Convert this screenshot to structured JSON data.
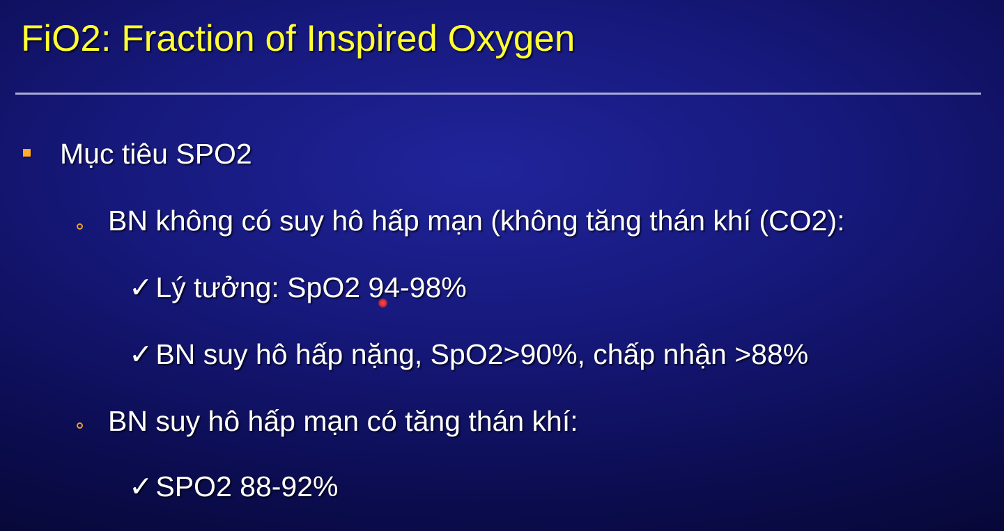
{
  "slide": {
    "title": "FiO2: Fraction of Inspired Oxygen",
    "check_mark": "✓",
    "items": [
      {
        "level": 1,
        "text": "Mục tiêu SPO2"
      },
      {
        "level": 2,
        "text": "BN không có suy hô hấp mạn (không tăng thán khí (CO2):"
      },
      {
        "level": 3,
        "text": "Lý tưởng: SpO2 94-98%"
      },
      {
        "level": 3,
        "text": "BN suy hô hấp nặng, SpO2>90%, chấp nhận >88%"
      },
      {
        "level": 2,
        "text": "BN suy hô hấp mạn có tăng thán khí:"
      },
      {
        "level": 3,
        "text": "SPO2 88-92%"
      }
    ]
  },
  "colors": {
    "title": "#ffff33",
    "bullet": "#ffae2a",
    "background": "#16187a",
    "rule": "#a8acd6",
    "pointer": "#e03030"
  },
  "icons": {
    "level1_bullet": "square-bullet-icon",
    "level2_bullet": "circle-bullet-icon",
    "level3_bullet": "checkmark-icon",
    "pointer": "laser-pointer-icon"
  }
}
